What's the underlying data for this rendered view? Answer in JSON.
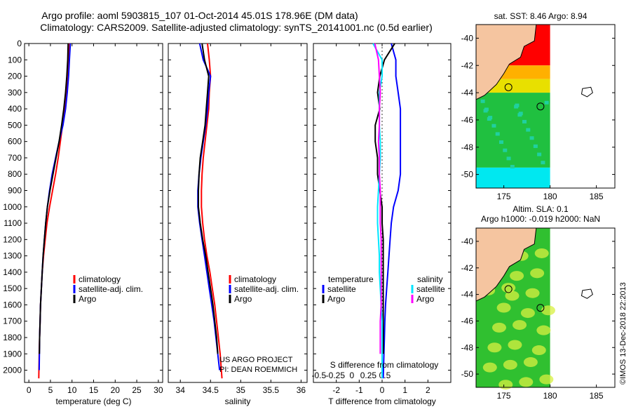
{
  "header": {
    "title_line1": "Argo profile: aoml 5903815_107 01-Oct-2014 45.01S 178.96E (DM data)",
    "title_line2": "Climatology: CARS2009. Satellite-adjusted climatology: synTS_20141001.nc (0.5d earlier)"
  },
  "colors": {
    "climatology": "#ff0000",
    "satellite": "#0000ff",
    "argo": "#000000",
    "salinity_sat": "#00e5ff",
    "salinity_argo": "#ff00ff",
    "land": "#f5c5a0",
    "sst_red": "#ff0000",
    "sst_orange": "#ffb000",
    "sst_yellow": "#e8e000",
    "sst_green": "#20c040",
    "sst_teal": "#20d0a0",
    "sst_cyan": "#00e8f0",
    "sla_green": "#30c030",
    "sla_yellow": "#d8f040"
  },
  "chart_data": [
    {
      "type": "line",
      "name": "temperature",
      "xlabel": "temperature (deg C)",
      "xlim": [
        -1,
        31
      ],
      "xticks": [
        0,
        5,
        10,
        15,
        20,
        25,
        30
      ],
      "ylim": [
        0,
        2075
      ],
      "yticks": [
        0,
        100,
        200,
        300,
        400,
        500,
        600,
        700,
        800,
        900,
        1000,
        1100,
        1200,
        1300,
        1400,
        1500,
        1600,
        1700,
        1800,
        1900,
        2000
      ],
      "legend": [
        "climatology",
        "satellite-adj. clim.",
        "Argo"
      ],
      "series": [
        {
          "name": "climatology",
          "color": "#ff0000",
          "x": [
            9.3,
            9.1,
            8.9,
            8.6,
            8.2,
            7.8,
            7.3,
            6.8,
            6.2,
            5.5,
            4.8,
            4.2,
            3.8,
            3.4,
            3.1,
            2.9,
            2.7,
            2.6,
            2.5,
            2.4,
            2.3
          ],
          "y": [
            0,
            100,
            200,
            300,
            400,
            500,
            600,
            700,
            800,
            900,
            1000,
            1100,
            1200,
            1300,
            1400,
            1500,
            1600,
            1700,
            1800,
            1900,
            2050
          ]
        },
        {
          "name": "satellite-adj. clim.",
          "color": "#0000ff",
          "x": [
            9.6,
            9.4,
            9.2,
            8.9,
            8.5,
            7.9,
            7.0,
            6.2,
            5.4,
            4.8,
            4.3,
            3.9,
            3.6,
            3.3,
            3.1,
            2.9,
            2.7,
            2.6,
            2.5,
            2.45,
            2.4
          ],
          "y": [
            0,
            100,
            200,
            300,
            400,
            500,
            600,
            700,
            800,
            900,
            1000,
            1100,
            1200,
            1300,
            1400,
            1500,
            1600,
            1700,
            1800,
            1900,
            2000
          ]
        },
        {
          "name": "Argo",
          "color": "#000000",
          "x": [
            9.1,
            9.0,
            8.8,
            8.5,
            8.1,
            7.6,
            7.0,
            6.3,
            5.6,
            4.9,
            4.3,
            3.9,
            3.6,
            3.3,
            3.1,
            2.9,
            2.7,
            2.6,
            2.5,
            2.45
          ],
          "y": [
            0,
            100,
            200,
            300,
            400,
            500,
            600,
            700,
            800,
            900,
            1000,
            1100,
            1200,
            1300,
            1400,
            1500,
            1600,
            1700,
            1800,
            1900
          ]
        }
      ]
    },
    {
      "type": "line",
      "name": "salinity",
      "xlabel": "salinity",
      "xlim": [
        33.8,
        36.1
      ],
      "xticks": [
        34,
        34.5,
        35,
        35.5,
        36
      ],
      "xticklabels": [
        "34",
        "34.5",
        "35",
        "35.5",
        "36"
      ],
      "ylim": [
        0,
        2075
      ],
      "legend": [
        "climatology",
        "satellite-adj. clim.",
        "Argo"
      ],
      "annotation": [
        "US ARGO PROJECT",
        "PI: DEAN ROEMMICH"
      ],
      "series": [
        {
          "name": "climatology",
          "color": "#ff0000",
          "x": [
            34.45,
            34.48,
            34.5,
            34.48,
            34.47,
            34.44,
            34.41,
            34.38,
            34.36,
            34.35,
            34.35,
            34.37,
            34.4,
            34.44,
            34.49,
            34.53,
            34.57,
            34.6,
            34.63,
            34.66,
            34.69
          ],
          "y": [
            0,
            100,
            200,
            300,
            400,
            500,
            600,
            700,
            800,
            900,
            1000,
            1100,
            1200,
            1300,
            1400,
            1500,
            1600,
            1700,
            1800,
            1900,
            2050
          ]
        },
        {
          "name": "satellite-adj. clim.",
          "color": "#0000ff",
          "x": [
            34.32,
            34.38,
            34.5,
            34.47,
            34.45,
            34.42,
            34.38,
            34.34,
            34.31,
            34.29,
            34.29,
            34.32,
            34.36,
            34.4,
            34.44,
            34.48,
            34.52,
            34.56,
            34.59,
            34.62,
            34.65
          ],
          "y": [
            0,
            100,
            200,
            300,
            400,
            500,
            600,
            700,
            800,
            900,
            1000,
            1100,
            1200,
            1300,
            1400,
            1500,
            1600,
            1700,
            1800,
            1900,
            2000
          ]
        },
        {
          "name": "Argo",
          "color": "#000000",
          "x": [
            34.36,
            34.4,
            34.47,
            34.45,
            34.43,
            34.41,
            34.37,
            34.33,
            34.31,
            34.3,
            34.3,
            34.33,
            34.37,
            34.42,
            34.46,
            34.5,
            34.54,
            34.57,
            34.6,
            34.62
          ],
          "y": [
            0,
            100,
            200,
            300,
            400,
            500,
            600,
            700,
            800,
            900,
            1000,
            1100,
            1200,
            1300,
            1400,
            1500,
            1600,
            1700,
            1800,
            1900
          ]
        }
      ]
    },
    {
      "type": "line",
      "name": "difference",
      "xlabel": "T difference from climatology",
      "xlim": [
        -3,
        3
      ],
      "xticks": [
        -2,
        -1,
        0,
        1,
        2
      ],
      "x2label": "S difference from climatology",
      "x2ticks": [
        -0.5,
        -0.25,
        0,
        0.25,
        0.5
      ],
      "x2ticklabels": [
        "-0.5",
        "-0.25",
        "0",
        "0.25",
        "0.5"
      ],
      "ylim": [
        0,
        2075
      ],
      "legend_left": {
        "title": "temperature",
        "items": [
          "satellite",
          "Argo"
        ]
      },
      "legend_right": {
        "title": "salinity",
        "items": [
          "satellite",
          "Argo"
        ]
      },
      "series": [
        {
          "name": "temperature satellite",
          "color": "#0000ff",
          "x": [
            0.4,
            0.6,
            0.6,
            0.7,
            0.8,
            0.8,
            0.8,
            0.8,
            0.8,
            0.7,
            0.5,
            0.4,
            0.35,
            0.3,
            0.25,
            0.2,
            0.15,
            0.12,
            0.1,
            0.08,
            0.05
          ],
          "y": [
            0,
            100,
            200,
            300,
            400,
            500,
            600,
            700,
            800,
            900,
            1000,
            1100,
            1200,
            1300,
            1400,
            1500,
            1600,
            1700,
            1800,
            1900,
            2050
          ]
        },
        {
          "name": "temperature Argo",
          "color": "#000000",
          "x": [
            0.55,
            0.1,
            -0.1,
            -0.2,
            -0.1,
            -0.3,
            -0.3,
            -0.2,
            -0.2,
            -0.1,
            0.0,
            0.0,
            0.05,
            0.05,
            0.05,
            0.05,
            0.05,
            0.05,
            0.05,
            0.05
          ],
          "y": [
            0,
            100,
            200,
            300,
            400,
            500,
            600,
            700,
            800,
            900,
            1000,
            1100,
            1200,
            1300,
            1400,
            1500,
            1600,
            1700,
            1800,
            1900
          ]
        },
        {
          "name": "salinity satellite",
          "color": "#00e5ff",
          "x": [
            -0.1,
            0.0,
            0.0,
            -0.03,
            -0.03,
            -0.03,
            -0.02,
            -0.02,
            -0.03,
            -0.04,
            -0.05,
            -0.05,
            -0.04,
            -0.03,
            -0.03,
            -0.02,
            -0.01,
            0.0,
            0.0,
            0.0,
            0.0
          ],
          "y": [
            0,
            100,
            200,
            300,
            400,
            500,
            600,
            700,
            800,
            900,
            1000,
            1100,
            1200,
            1300,
            1400,
            1500,
            1600,
            1700,
            1800,
            1900,
            2050
          ]
        },
        {
          "name": "salinity Argo",
          "color": "#ff00ff",
          "x": [
            -0.08,
            -0.04,
            -0.03,
            -0.02,
            -0.03,
            -0.03,
            -0.04,
            -0.03,
            -0.03,
            -0.02,
            -0.02,
            -0.02,
            -0.01,
            -0.01,
            -0.01,
            -0.01,
            -0.01,
            -0.02,
            -0.02,
            -0.02
          ],
          "y": [
            0,
            100,
            200,
            300,
            400,
            500,
            600,
            700,
            800,
            900,
            1000,
            1100,
            1200,
            1300,
            1400,
            1500,
            1600,
            1700,
            1800,
            1900
          ]
        }
      ]
    },
    {
      "type": "heatmap",
      "name": "sst-map",
      "title": "sat. SST: 8.46 Argo: 8.94",
      "xlim": [
        172,
        187
      ],
      "ylim": [
        -51,
        -39
      ],
      "xticks": [
        175,
        180,
        185
      ],
      "yticks": [
        -40,
        -42,
        -44,
        -46,
        -48,
        -50
      ],
      "argo_position": [
        178.96,
        -45.01
      ]
    },
    {
      "type": "heatmap",
      "name": "sla-map",
      "title_line1": "Altim. SLA: 0.1",
      "title_line2": "Argo h1000: -0.019 h2000: NaN",
      "xlim": [
        172,
        187
      ],
      "ylim": [
        -51,
        -39
      ],
      "xticks": [
        175,
        180,
        185
      ],
      "yticks": [
        -40,
        -42,
        -44,
        -46,
        -48,
        -50
      ],
      "argo_position": [
        178.96,
        -45.01
      ]
    }
  ],
  "footer": {
    "credit": "©IMOS 13-Dec-2018 22:2013"
  }
}
